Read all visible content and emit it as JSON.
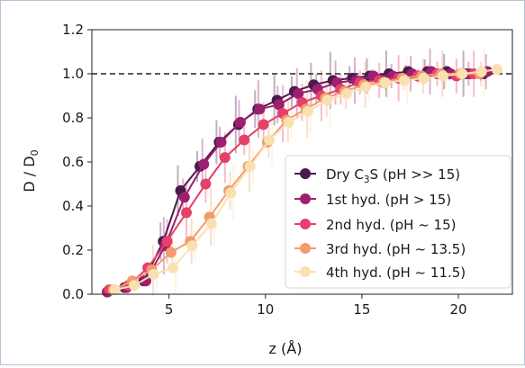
{
  "chart_data": {
    "type": "line",
    "xlabel": "z (Å)",
    "ylabel": "D / D",
    "ylabel_sub": "0",
    "xlim": [
      1.0,
      22.8
    ],
    "ylim": [
      0.0,
      1.2
    ],
    "xticks": [
      5,
      10,
      15,
      20
    ],
    "yticks": [
      0.0,
      0.2,
      0.4,
      0.6,
      0.8,
      1.0,
      1.2
    ],
    "reference_line": 1.0,
    "legend_position": "lower-right",
    "series": [
      {
        "name": "Dry C",
        "name_sub": "3",
        "name_tail": "S (pH >> 15)",
        "color": "#4a1a4e",
        "x": [
          1.8,
          2.7,
          3.7,
          4.7,
          5.6,
          6.6,
          7.6,
          8.6,
          9.6,
          10.6,
          11.5,
          12.5,
          13.5,
          14.5,
          15.4,
          16.4,
          17.4,
          18.4,
          19.4,
          20.4,
          21.3
        ],
        "y": [
          0.01,
          0.03,
          0.06,
          0.24,
          0.47,
          0.58,
          0.69,
          0.77,
          0.84,
          0.88,
          0.92,
          0.95,
          0.97,
          0.98,
          0.99,
          1.0,
          1.01,
          1.01,
          1.01,
          1.0,
          1.0
        ]
      },
      {
        "name": "1st hyd. (pH > 15)",
        "color": "#9d1f6f",
        "x": [
          1.8,
          2.8,
          3.8,
          4.8,
          5.8,
          6.8,
          7.7,
          8.7,
          9.7,
          10.7,
          11.7,
          12.7,
          13.7,
          14.7,
          15.6,
          16.6,
          17.6,
          18.6,
          19.6,
          20.6,
          21.5
        ],
        "y": [
          0.01,
          0.03,
          0.06,
          0.22,
          0.44,
          0.59,
          0.69,
          0.78,
          0.84,
          0.86,
          0.91,
          0.93,
          0.96,
          0.97,
          0.99,
          0.99,
          1.0,
          1.01,
          1.0,
          1.0,
          1.01
        ]
      },
      {
        "name": "2nd hyd. (pH ~ 15)",
        "color": "#e5406a",
        "x": [
          1.9,
          2.9,
          3.9,
          4.9,
          5.9,
          6.9,
          7.9,
          8.9,
          9.9,
          10.9,
          11.9,
          12.9,
          13.9,
          14.9,
          15.9,
          16.9,
          17.9,
          18.9,
          19.9,
          20.8
        ],
        "y": [
          0.02,
          0.04,
          0.12,
          0.24,
          0.37,
          0.5,
          0.62,
          0.7,
          0.77,
          0.82,
          0.87,
          0.9,
          0.93,
          0.96,
          0.97,
          0.98,
          0.99,
          1.0,
          0.99,
          1.0
        ]
      },
      {
        "name": "3rd hyd. (pH ~ 13.5)",
        "color": "#f39a6e",
        "x": [
          2.1,
          3.1,
          4.1,
          5.1,
          6.1,
          7.1,
          8.1,
          9.1,
          10.1,
          11.1,
          12.1,
          13.1,
          14.1,
          15.1,
          16.1,
          17.1,
          18.1,
          19.1,
          20.1,
          21.1
        ],
        "y": [
          0.02,
          0.06,
          0.11,
          0.19,
          0.24,
          0.35,
          0.47,
          0.58,
          0.69,
          0.79,
          0.84,
          0.89,
          0.92,
          0.95,
          0.96,
          0.98,
          0.99,
          1.0,
          1.0,
          1.0
        ]
      },
      {
        "name": "4th hyd. (pH ~ 11.5)",
        "color": "#f9e0b0",
        "x": [
          2.2,
          3.2,
          4.2,
          5.2,
          6.2,
          7.2,
          8.2,
          9.2,
          10.2,
          11.2,
          12.2,
          13.2,
          14.2,
          15.2,
          16.2,
          17.2,
          18.2,
          19.2,
          20.2,
          21.2,
          22.0
        ],
        "y": [
          0.02,
          0.04,
          0.09,
          0.12,
          0.22,
          0.32,
          0.46,
          0.58,
          0.7,
          0.78,
          0.83,
          0.88,
          0.91,
          0.94,
          0.96,
          0.97,
          0.98,
          0.99,
          1.0,
          1.01,
          1.02
        ]
      }
    ]
  }
}
